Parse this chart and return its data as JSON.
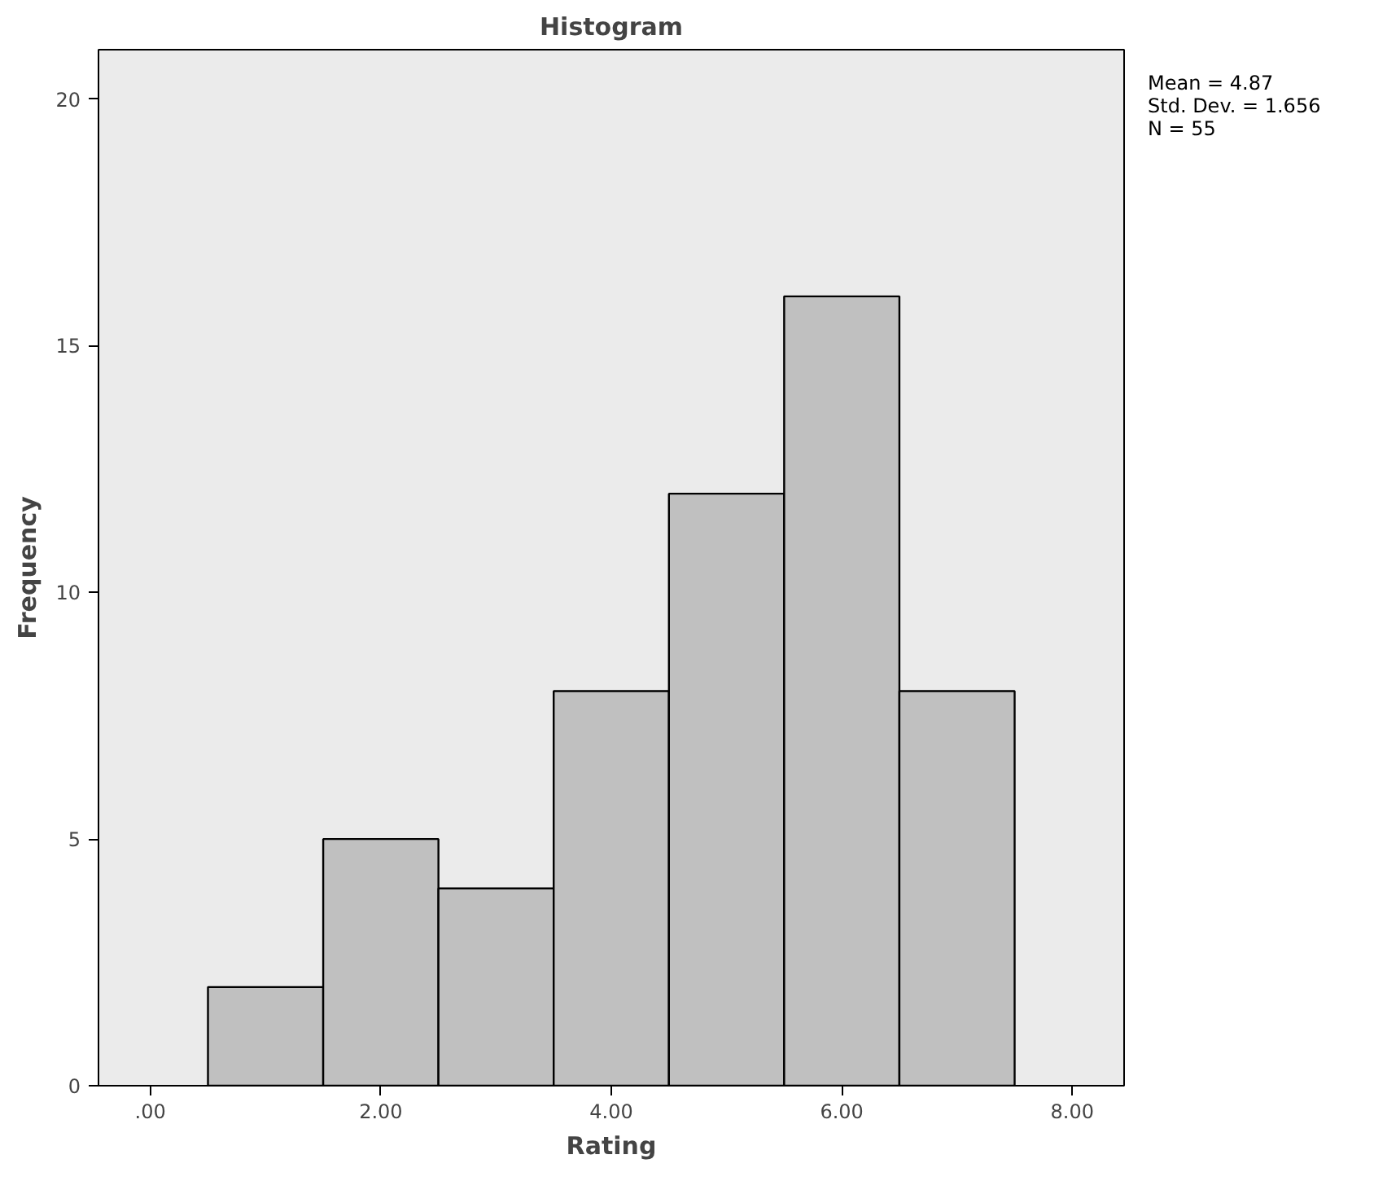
{
  "chart_data": {
    "type": "histogram",
    "title": "Histogram",
    "xlabel": "Rating",
    "ylabel": "Frequency",
    "bins": [
      0.5,
      1.5,
      2.5,
      3.5,
      4.5,
      5.5,
      6.5,
      7.5
    ],
    "values": [
      2,
      5,
      4,
      8,
      12,
      16,
      8
    ],
    "color": "#c0c0c0",
    "xlim": [
      -0.45,
      8.45
    ],
    "xticks": [
      {
        "value": 0,
        "label": ".00"
      },
      {
        "value": 2,
        "label": "2.00"
      },
      {
        "value": 4,
        "label": "4.00"
      },
      {
        "value": 6,
        "label": "6.00"
      },
      {
        "value": 8,
        "label": "8.00"
      }
    ],
    "ylim": [
      0,
      21
    ],
    "yticks": [
      0,
      5,
      10,
      15,
      20
    ],
    "grid": false,
    "annotations": [
      "Mean = 4.87",
      "Std. Dev. = 1.656",
      "N = 55"
    ]
  }
}
